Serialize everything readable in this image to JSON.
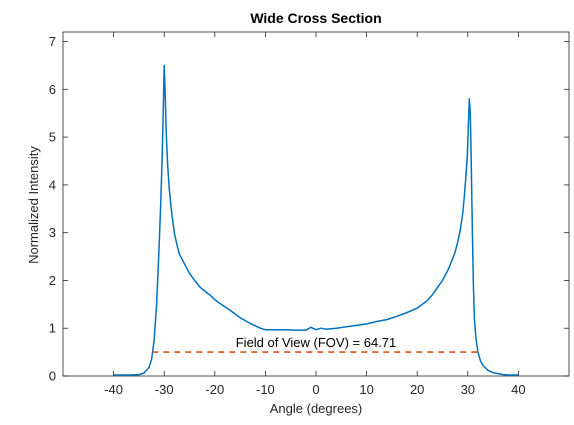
{
  "chart_data": {
    "type": "line",
    "title": "Wide Cross Section",
    "xlabel": "Angle (degrees)",
    "ylabel": "Normalized Intensity",
    "xlim": [
      -50,
      50
    ],
    "ylim": [
      0,
      7.2
    ],
    "xticks": [
      -40,
      -30,
      -20,
      -10,
      0,
      10,
      20,
      30,
      40
    ],
    "yticks": [
      0,
      1,
      2,
      3,
      4,
      5,
      6,
      7
    ],
    "grid": false,
    "legend": "none",
    "colors": {
      "series": "#0072BD",
      "fov_line": "#D95319",
      "axes": "#262626"
    },
    "series": [
      {
        "x": [
          -40,
          -37,
          -35,
          -34,
          -33,
          -32.5,
          -32,
          -31.5,
          -31,
          -30.7,
          -30.4,
          -30.2,
          -30.0,
          -29.8,
          -29.6,
          -29.3,
          -29.0,
          -28.5,
          -28.0,
          -27.5,
          -27.0,
          -26.0,
          -25.0,
          -24.0,
          -23.0,
          -22.0,
          -21.0,
          -20.0,
          -19.0,
          -18.0,
          -17.0,
          -16.0,
          -15.0,
          -14.0,
          -13.0,
          -12.0,
          -11.0,
          -10.0,
          -8.0,
          -6.0,
          -4.0,
          -2.0,
          -1.0,
          0.0,
          1.0,
          2.0,
          4.0,
          6.0,
          8.0,
          10.0,
          12.0,
          14.0,
          16.0,
          18.0,
          20.0,
          22.0,
          23.0,
          24.0,
          25.0,
          26.0,
          27.0,
          27.5,
          28.0,
          28.5,
          29.0,
          29.3,
          29.6,
          29.9,
          30.1,
          30.3,
          30.5,
          30.7,
          30.9,
          31.1,
          31.3,
          31.6,
          32.0,
          32.5,
          33.0,
          34.0,
          35.0,
          36.0,
          37.0,
          38.0,
          40.0
        ],
        "y": [
          0.02,
          0.02,
          0.03,
          0.06,
          0.18,
          0.35,
          0.75,
          1.5,
          2.7,
          3.6,
          4.6,
          5.5,
          6.5,
          5.9,
          5.1,
          4.4,
          3.9,
          3.4,
          3.0,
          2.75,
          2.55,
          2.35,
          2.15,
          2.0,
          1.87,
          1.78,
          1.7,
          1.6,
          1.52,
          1.45,
          1.38,
          1.3,
          1.22,
          1.16,
          1.1,
          1.05,
          1.0,
          0.97,
          0.97,
          0.97,
          0.96,
          0.96,
          1.02,
          0.97,
          1.0,
          0.98,
          1.0,
          1.03,
          1.06,
          1.09,
          1.14,
          1.18,
          1.25,
          1.33,
          1.42,
          1.58,
          1.7,
          1.85,
          2.0,
          2.2,
          2.45,
          2.6,
          2.8,
          3.05,
          3.4,
          3.75,
          4.15,
          4.6,
          5.2,
          5.8,
          5.5,
          4.4,
          3.0,
          1.9,
          1.2,
          0.8,
          0.5,
          0.32,
          0.22,
          0.12,
          0.07,
          0.05,
          0.03,
          0.02,
          0.02
        ]
      }
    ],
    "fov_line": {
      "x": [
        -32.36,
        32.35
      ],
      "y": 0.5
    },
    "annotation": {
      "text": "Field of View (FOV) = 64.71",
      "x": 0,
      "y": 0.5
    }
  }
}
